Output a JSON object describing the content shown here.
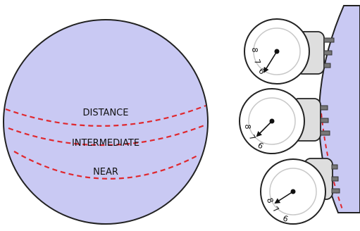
{
  "colors": {
    "lens_fill": "#c9c9f3",
    "outline": "#222222",
    "dashed_line": "#e0282e",
    "housing_fill": "#dedede",
    "pin_fill": "#777777",
    "dial_face": "#ffffff",
    "dial_ring": "#c8c8c8"
  },
  "zones": [
    {
      "label": "DISTANCE"
    },
    {
      "label": "INTERMEDIATE"
    },
    {
      "label": "NEAR"
    }
  ],
  "dials": [
    {
      "numbers": [
        "8",
        "7",
        "6"
      ]
    },
    {
      "numbers": [
        "8",
        "7",
        "6"
      ]
    },
    {
      "numbers": [
        "8",
        "7",
        "6"
      ]
    }
  ]
}
